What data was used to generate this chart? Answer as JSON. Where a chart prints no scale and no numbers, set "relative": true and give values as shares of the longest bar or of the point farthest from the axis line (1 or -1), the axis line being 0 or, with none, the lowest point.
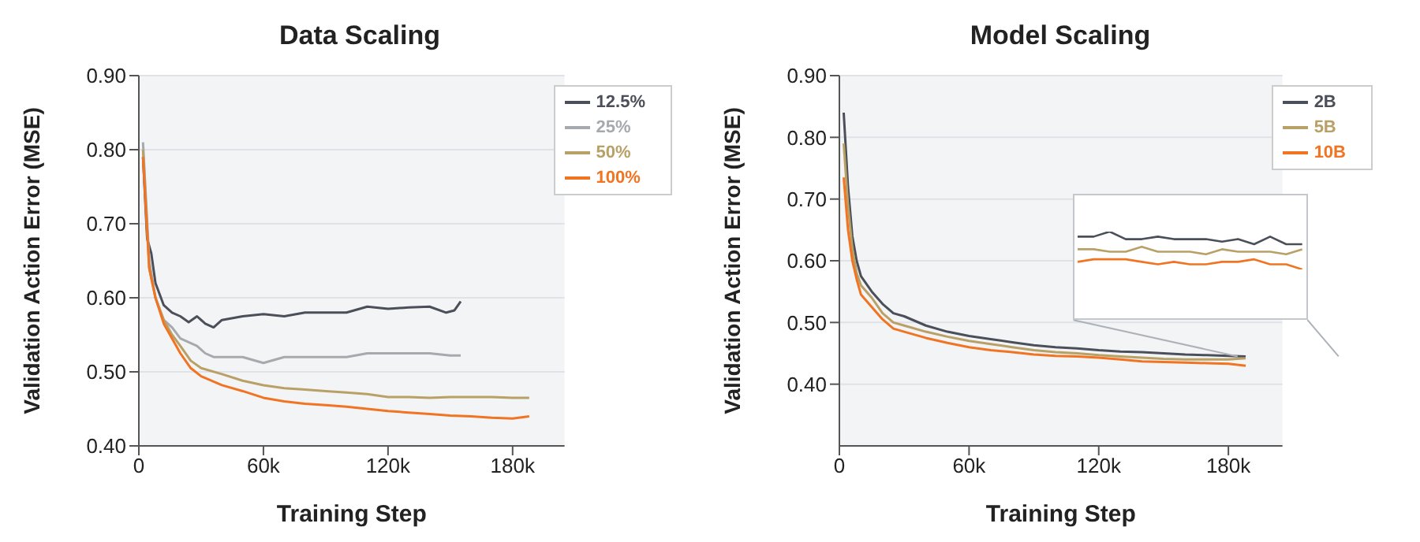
{
  "chart_data": [
    {
      "type": "line",
      "title": "Data Scaling",
      "xlabel": "Training Step",
      "ylabel": "Validation Action Error (MSE)",
      "xlim": [
        0,
        205000
      ],
      "ylim": [
        0.4,
        0.9
      ],
      "xticks": [
        0,
        {
          "value": 60000,
          "label": "60k"
        },
        {
          "value": 120000,
          "label": "120k"
        },
        {
          "value": 180000,
          "label": "180k"
        }
      ],
      "yticks": [
        {
          "value": 0.4,
          "label": "0.40"
        },
        {
          "value": 0.5,
          "label": "0.50"
        },
        {
          "value": 0.6,
          "label": "0.60"
        },
        {
          "value": 0.7,
          "label": "0.70"
        },
        {
          "value": 0.8,
          "label": "0.80"
        },
        {
          "value": 0.9,
          "label": "0.90"
        }
      ],
      "grid": "y",
      "legend": "top right",
      "marker": "none",
      "series": [
        {
          "name": "12.5%",
          "color": "#4a4f5a",
          "x": [
            2000,
            4000,
            6000,
            8000,
            12000,
            16000,
            20000,
            24000,
            28000,
            32000,
            36000,
            40000,
            50000,
            60000,
            70000,
            80000,
            90000,
            100000,
            110000,
            120000,
            130000,
            140000,
            148000,
            152000,
            155000
          ],
          "values": [
            0.79,
            0.68,
            0.66,
            0.62,
            0.59,
            0.58,
            0.575,
            0.567,
            0.575,
            0.565,
            0.56,
            0.57,
            0.575,
            0.578,
            0.575,
            0.58,
            0.58,
            0.58,
            0.588,
            0.585,
            0.587,
            0.588,
            0.58,
            0.583,
            0.595
          ]
        },
        {
          "name": "25%",
          "color": "#a6a9ae",
          "x": [
            2000,
            5000,
            8000,
            12000,
            16000,
            20000,
            24000,
            28000,
            32000,
            36000,
            40000,
            50000,
            60000,
            70000,
            80000,
            90000,
            100000,
            110000,
            120000,
            130000,
            140000,
            150000,
            155000
          ],
          "values": [
            0.81,
            0.65,
            0.6,
            0.57,
            0.56,
            0.545,
            0.54,
            0.535,
            0.525,
            0.52,
            0.52,
            0.52,
            0.512,
            0.52,
            0.52,
            0.52,
            0.52,
            0.525,
            0.525,
            0.525,
            0.525,
            0.522,
            0.522
          ]
        },
        {
          "name": "50%",
          "color": "#b9a066",
          "x": [
            2000,
            5000,
            8000,
            12000,
            16000,
            20000,
            25000,
            30000,
            40000,
            50000,
            60000,
            70000,
            80000,
            90000,
            100000,
            110000,
            120000,
            130000,
            140000,
            150000,
            160000,
            170000,
            180000,
            188000
          ],
          "values": [
            0.8,
            0.64,
            0.6,
            0.57,
            0.55,
            0.535,
            0.515,
            0.505,
            0.497,
            0.488,
            0.482,
            0.478,
            0.476,
            0.474,
            0.472,
            0.47,
            0.466,
            0.466,
            0.465,
            0.466,
            0.466,
            0.466,
            0.465,
            0.465
          ]
        },
        {
          "name": "100%",
          "color": "#f07422",
          "x": [
            2000,
            5000,
            8000,
            12000,
            16000,
            20000,
            25000,
            30000,
            40000,
            50000,
            60000,
            70000,
            80000,
            90000,
            100000,
            110000,
            120000,
            130000,
            140000,
            150000,
            160000,
            170000,
            180000,
            188000
          ],
          "values": [
            0.79,
            0.64,
            0.6,
            0.565,
            0.545,
            0.525,
            0.505,
            0.494,
            0.482,
            0.474,
            0.465,
            0.46,
            0.457,
            0.455,
            0.453,
            0.45,
            0.447,
            0.445,
            0.443,
            0.441,
            0.44,
            0.438,
            0.437,
            0.44
          ]
        }
      ]
    },
    {
      "type": "line",
      "title": "Model Scaling",
      "xlabel": "Training Step",
      "ylabel": "Validation Action Error (MSE)",
      "xlim": [
        0,
        205000
      ],
      "ylim": [
        0.3,
        0.9
      ],
      "xticks": [
        0,
        {
          "value": 60000,
          "label": "60k"
        },
        {
          "value": 120000,
          "label": "120k"
        },
        {
          "value": 180000,
          "label": "180k"
        }
      ],
      "yticks": [
        {
          "value": 0.4,
          "label": "0.40"
        },
        {
          "value": 0.5,
          "label": "0.50"
        },
        {
          "value": 0.6,
          "label": "0.60"
        },
        {
          "value": 0.7,
          "label": "0.70"
        },
        {
          "value": 0.8,
          "label": "0.80"
        },
        {
          "value": 0.9,
          "label": "0.90"
        }
      ],
      "grid": "y",
      "legend": "top right",
      "marker": "none",
      "series": [
        {
          "name": "2B",
          "color": "#4a4f5a",
          "x": [
            2000,
            4000,
            6000,
            8000,
            10000,
            15000,
            20000,
            25000,
            30000,
            40000,
            50000,
            60000,
            70000,
            80000,
            90000,
            100000,
            110000,
            120000,
            130000,
            140000,
            150000,
            160000,
            170000,
            180000,
            188000
          ],
          "values": [
            0.84,
            0.72,
            0.64,
            0.6,
            0.575,
            0.55,
            0.53,
            0.515,
            0.51,
            0.495,
            0.485,
            0.478,
            0.473,
            0.468,
            0.463,
            0.46,
            0.458,
            0.455,
            0.453,
            0.452,
            0.45,
            0.448,
            0.447,
            0.446,
            0.445
          ]
        },
        {
          "name": "5B",
          "color": "#b9a066",
          "x": [
            2000,
            4000,
            6000,
            8000,
            10000,
            15000,
            20000,
            25000,
            30000,
            40000,
            50000,
            60000,
            70000,
            80000,
            90000,
            100000,
            110000,
            120000,
            130000,
            140000,
            150000,
            160000,
            170000,
            180000,
            188000
          ],
          "values": [
            0.79,
            0.69,
            0.62,
            0.58,
            0.56,
            0.54,
            0.515,
            0.5,
            0.495,
            0.485,
            0.477,
            0.47,
            0.465,
            0.46,
            0.455,
            0.452,
            0.45,
            0.447,
            0.445,
            0.443,
            0.441,
            0.44,
            0.44,
            0.44,
            0.442
          ]
        },
        {
          "name": "10B",
          "color": "#f07422",
          "x": [
            2000,
            4000,
            6000,
            8000,
            10000,
            15000,
            20000,
            25000,
            30000,
            40000,
            50000,
            60000,
            70000,
            80000,
            90000,
            100000,
            110000,
            120000,
            130000,
            140000,
            150000,
            160000,
            170000,
            180000,
            188000
          ],
          "values": [
            0.735,
            0.65,
            0.6,
            0.57,
            0.545,
            0.525,
            0.505,
            0.49,
            0.485,
            0.475,
            0.467,
            0.46,
            0.455,
            0.452,
            0.448,
            0.446,
            0.445,
            0.443,
            0.44,
            0.437,
            0.436,
            0.435,
            0.434,
            0.433,
            0.43
          ]
        }
      ]
    },
    {
      "type": "line",
      "relative": true,
      "categories": [
        null,
        null,
        null,
        null,
        null,
        null,
        null,
        null,
        null,
        null,
        null,
        null,
        null,
        null,
        null
      ],
      "marker": "none",
      "series": [
        {
          "color": "#4a4f5a",
          "values": [
            0.867,
            0.867,
            1,
            0.8,
            0.8,
            0.867,
            0.8,
            0.8,
            0.8,
            0.733,
            0.8,
            0.667,
            0.867,
            0.667,
            0.667
          ]
        },
        {
          "color": "#b9a066",
          "values": [
            0.533,
            0.533,
            0.467,
            0.467,
            0.6,
            0.467,
            0.467,
            0.467,
            0.4,
            0.533,
            0.467,
            0.467,
            0.467,
            0.4,
            0.533
          ]
        },
        {
          "color": "#f07422",
          "values": [
            0.2,
            0.267,
            0.267,
            0.267,
            0.2,
            0.133,
            0.2,
            0.133,
            0.133,
            0.2,
            0.2,
            0.267,
            0.133,
            0.133,
            0
          ]
        }
      ]
    }
  ]
}
